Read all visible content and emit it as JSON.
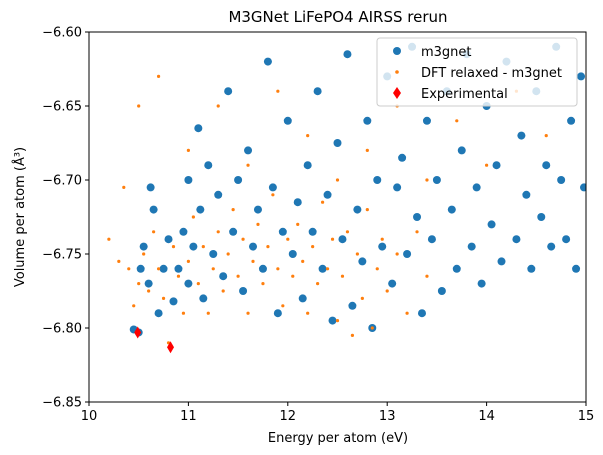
{
  "chart_data": {
    "type": "scatter",
    "title": "M3GNet LiFePO4 AIRSS rerun",
    "xlabel": "Energy per atom (eV)",
    "ylabel": "Volume per atom (Å³)",
    "xlim": [
      10,
      15
    ],
    "ylim": [
      -6.85,
      -6.6
    ],
    "x_ticks": [
      "10",
      "11",
      "12",
      "13",
      "14",
      "15"
    ],
    "y_ticks": [
      "−6.85",
      "−6.80",
      "−6.75",
      "−6.70",
      "−6.65",
      "−6.60"
    ],
    "grid": false,
    "legend_position": "top-right",
    "series": [
      {
        "name": "m3gnet",
        "color": "#1f77b4",
        "marker": "circle",
        "points": [
          [
            10.45,
            -6.801
          ],
          [
            10.5,
            -6.803
          ],
          [
            10.52,
            -6.76
          ],
          [
            10.55,
            -6.745
          ],
          [
            10.6,
            -6.77
          ],
          [
            10.62,
            -6.705
          ],
          [
            10.65,
            -6.72
          ],
          [
            10.7,
            -6.79
          ],
          [
            10.75,
            -6.76
          ],
          [
            10.8,
            -6.74
          ],
          [
            10.85,
            -6.782
          ],
          [
            10.9,
            -6.76
          ],
          [
            10.95,
            -6.735
          ],
          [
            11.0,
            -6.7
          ],
          [
            11.0,
            -6.77
          ],
          [
            11.05,
            -6.745
          ],
          [
            11.1,
            -6.665
          ],
          [
            11.12,
            -6.72
          ],
          [
            11.15,
            -6.78
          ],
          [
            11.2,
            -6.69
          ],
          [
            11.25,
            -6.75
          ],
          [
            11.3,
            -6.71
          ],
          [
            11.35,
            -6.765
          ],
          [
            11.4,
            -6.64
          ],
          [
            11.45,
            -6.735
          ],
          [
            11.5,
            -6.7
          ],
          [
            11.55,
            -6.775
          ],
          [
            11.6,
            -6.68
          ],
          [
            11.65,
            -6.745
          ],
          [
            11.7,
            -6.72
          ],
          [
            11.75,
            -6.76
          ],
          [
            11.8,
            -6.62
          ],
          [
            11.85,
            -6.705
          ],
          [
            11.9,
            -6.79
          ],
          [
            11.95,
            -6.735
          ],
          [
            12.0,
            -6.66
          ],
          [
            12.05,
            -6.75
          ],
          [
            12.1,
            -6.715
          ],
          [
            12.15,
            -6.78
          ],
          [
            12.2,
            -6.69
          ],
          [
            12.25,
            -6.735
          ],
          [
            12.3,
            -6.64
          ],
          [
            12.35,
            -6.76
          ],
          [
            12.4,
            -6.71
          ],
          [
            12.45,
            -6.795
          ],
          [
            12.5,
            -6.675
          ],
          [
            12.55,
            -6.74
          ],
          [
            12.6,
            -6.615
          ],
          [
            12.65,
            -6.785
          ],
          [
            12.7,
            -6.72
          ],
          [
            12.75,
            -6.755
          ],
          [
            12.8,
            -6.66
          ],
          [
            12.85,
            -6.8
          ],
          [
            12.9,
            -6.7
          ],
          [
            12.95,
            -6.745
          ],
          [
            13.0,
            -6.63
          ],
          [
            13.05,
            -6.77
          ],
          [
            13.1,
            -6.705
          ],
          [
            13.15,
            -6.685
          ],
          [
            13.2,
            -6.75
          ],
          [
            13.25,
            -6.61
          ],
          [
            13.3,
            -6.725
          ],
          [
            13.35,
            -6.79
          ],
          [
            13.4,
            -6.66
          ],
          [
            13.45,
            -6.74
          ],
          [
            13.5,
            -6.7
          ],
          [
            13.55,
            -6.775
          ],
          [
            13.6,
            -6.64
          ],
          [
            13.65,
            -6.72
          ],
          [
            13.7,
            -6.76
          ],
          [
            13.75,
            -6.68
          ],
          [
            13.8,
            -6.615
          ],
          [
            13.85,
            -6.745
          ],
          [
            13.9,
            -6.705
          ],
          [
            13.95,
            -6.77
          ],
          [
            14.0,
            -6.65
          ],
          [
            14.05,
            -6.73
          ],
          [
            14.1,
            -6.69
          ],
          [
            14.15,
            -6.755
          ],
          [
            14.2,
            -6.62
          ],
          [
            14.3,
            -6.74
          ],
          [
            14.35,
            -6.67
          ],
          [
            14.4,
            -6.71
          ],
          [
            14.45,
            -6.76
          ],
          [
            14.5,
            -6.64
          ],
          [
            14.55,
            -6.725
          ],
          [
            14.6,
            -6.69
          ],
          [
            14.65,
            -6.745
          ],
          [
            14.7,
            -6.61
          ],
          [
            14.75,
            -6.7
          ],
          [
            14.8,
            -6.74
          ],
          [
            14.85,
            -6.66
          ],
          [
            14.9,
            -6.76
          ],
          [
            14.95,
            -6.63
          ],
          [
            14.98,
            -6.705
          ]
        ]
      },
      {
        "name": "DFT relaxed - m3gnet",
        "color": "#ff7f0e",
        "marker": "point",
        "points": [
          [
            10.2,
            -6.74
          ],
          [
            10.3,
            -6.755
          ],
          [
            10.35,
            -6.705
          ],
          [
            10.4,
            -6.76
          ],
          [
            10.45,
            -6.785
          ],
          [
            10.5,
            -6.77
          ],
          [
            10.55,
            -6.75
          ],
          [
            10.6,
            -6.775
          ],
          [
            10.65,
            -6.735
          ],
          [
            10.7,
            -6.76
          ],
          [
            10.75,
            -6.78
          ],
          [
            10.8,
            -6.81
          ],
          [
            10.85,
            -6.745
          ],
          [
            10.9,
            -6.765
          ],
          [
            10.95,
            -6.79
          ],
          [
            11.0,
            -6.755
          ],
          [
            11.05,
            -6.725
          ],
          [
            11.1,
            -6.77
          ],
          [
            11.15,
            -6.745
          ],
          [
            11.2,
            -6.79
          ],
          [
            11.25,
            -6.76
          ],
          [
            11.3,
            -6.735
          ],
          [
            11.35,
            -6.775
          ],
          [
            11.4,
            -6.75
          ],
          [
            11.45,
            -6.72
          ],
          [
            11.5,
            -6.765
          ],
          [
            11.55,
            -6.74
          ],
          [
            11.6,
            -6.79
          ],
          [
            11.65,
            -6.755
          ],
          [
            11.7,
            -6.73
          ],
          [
            11.75,
            -6.77
          ],
          [
            11.8,
            -6.745
          ],
          [
            11.85,
            -6.71
          ],
          [
            11.9,
            -6.76
          ],
          [
            11.95,
            -6.785
          ],
          [
            12.0,
            -6.74
          ],
          [
            12.05,
            -6.765
          ],
          [
            12.1,
            -6.73
          ],
          [
            12.15,
            -6.755
          ],
          [
            12.2,
            -6.79
          ],
          [
            12.25,
            -6.745
          ],
          [
            12.3,
            -6.77
          ],
          [
            12.35,
            -6.715
          ],
          [
            12.4,
            -6.76
          ],
          [
            12.45,
            -6.74
          ],
          [
            12.5,
            -6.795
          ],
          [
            12.55,
            -6.765
          ],
          [
            12.6,
            -6.735
          ],
          [
            12.65,
            -6.805
          ],
          [
            12.7,
            -6.75
          ],
          [
            12.75,
            -6.78
          ],
          [
            12.8,
            -6.72
          ],
          [
            12.85,
            -6.8
          ],
          [
            12.9,
            -6.76
          ],
          [
            12.95,
            -6.74
          ],
          [
            13.0,
            -6.775
          ],
          [
            13.1,
            -6.75
          ],
          [
            13.2,
            -6.79
          ],
          [
            13.3,
            -6.735
          ],
          [
            13.4,
            -6.765
          ],
          [
            10.5,
            -6.65
          ],
          [
            10.7,
            -6.63
          ],
          [
            11.0,
            -6.68
          ],
          [
            11.3,
            -6.65
          ],
          [
            11.6,
            -6.69
          ],
          [
            11.9,
            -6.64
          ],
          [
            12.2,
            -6.67
          ],
          [
            12.5,
            -6.7
          ],
          [
            12.8,
            -6.68
          ],
          [
            13.1,
            -6.65
          ],
          [
            13.4,
            -6.7
          ],
          [
            13.7,
            -6.66
          ],
          [
            14.0,
            -6.69
          ],
          [
            14.3,
            -6.64
          ],
          [
            14.6,
            -6.67
          ]
        ]
      },
      {
        "name": "Experimental",
        "color": "#ff0000",
        "marker": "thin_diamond",
        "points": [
          [
            10.49,
            -6.803
          ],
          [
            10.82,
            -6.813
          ]
        ]
      }
    ]
  }
}
